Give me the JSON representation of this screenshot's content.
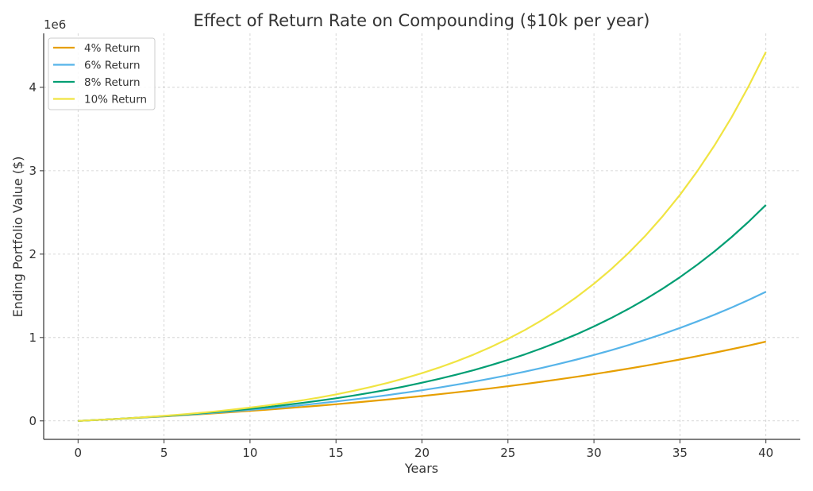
{
  "chart_data": {
    "type": "line",
    "title": "Effect of Return Rate on Compounding ($10k per year)",
    "xlabel": "Years",
    "ylabel": "Ending Portfolio Value ($)",
    "y_offset_label": "1e6",
    "xlim": [
      -2,
      42
    ],
    "ylim": [
      -221296,
      4647222
    ],
    "xticks": [
      0,
      5,
      10,
      15,
      20,
      25,
      30,
      35,
      40
    ],
    "xtick_labels": [
      "0",
      "5",
      "10",
      "15",
      "20",
      "25",
      "30",
      "35",
      "40"
    ],
    "yticks": [
      0,
      1000000,
      2000000,
      3000000,
      4000000
    ],
    "ytick_labels": [
      "0",
      "1",
      "2",
      "3",
      "4"
    ],
    "grid": true,
    "legend_position": "top-left",
    "x": [
      0,
      1,
      2,
      3,
      4,
      5,
      6,
      7,
      8,
      9,
      10,
      11,
      12,
      13,
      14,
      15,
      16,
      17,
      18,
      19,
      20,
      21,
      22,
      23,
      24,
      25,
      26,
      27,
      28,
      29,
      30,
      31,
      32,
      33,
      34,
      35,
      36,
      37,
      38,
      39,
      40
    ],
    "series": [
      {
        "name": "4% Return",
        "color": "#E69F00",
        "values": [
          0,
          10000,
          20400,
          31216,
          42465,
          54163,
          66330,
          78983,
          92142,
          105828,
          120061,
          134864,
          150258,
          166268,
          182919,
          200236,
          218245,
          236975,
          256454,
          276712,
          297781,
          319692,
          342480,
          366179,
          390826,
          416459,
          443118,
          470842,
          499676,
          529663,
          560849,
          593283,
          627015,
          662095,
          698579,
          736522,
          775983,
          817023,
          859703,
          904092,
          950255
        ]
      },
      {
        "name": "6% Return",
        "color": "#56B4E9",
        "values": [
          0,
          10000,
          20600,
          31836,
          43746,
          56371,
          69753,
          83938,
          98975,
          114913,
          131808,
          149716,
          168699,
          188821,
          210151,
          232760,
          256725,
          282129,
          309057,
          337600,
          367856,
          399927,
          433923,
          469958,
          508156,
          548645,
          591564,
          637058,
          685281,
          736398,
          790582,
          848017,
          908898,
          973432,
          1041838,
          1114348,
          1191209,
          1272681,
          1359042,
          1450585,
          1547620
        ]
      },
      {
        "name": "8% Return",
        "color": "#009E73",
        "values": [
          0,
          10000,
          20800,
          32464,
          45061,
          58666,
          73359,
          89228,
          106366,
          124876,
          144866,
          166455,
          189771,
          214953,
          242149,
          271521,
          303243,
          337502,
          374502,
          414463,
          457620,
          504229,
          554568,
          608933,
          667648,
          731059,
          799544,
          873508,
          953388,
          1039659,
          1132832,
          1233459,
          1342135,
          1459506,
          1586267,
          1723168,
          1871022,
          2030703,
          2203160,
          2389412,
          2590565
        ]
      },
      {
        "name": "10% Return",
        "color": "#F0E442",
        "values": [
          0,
          10000,
          21000,
          33100,
          46410,
          61051,
          77156,
          94872,
          114359,
          135795,
          159374,
          185312,
          213843,
          245227,
          279750,
          317725,
          359497,
          405447,
          455992,
          511591,
          572750,
          640025,
          714028,
          795430,
          884973,
          983471,
          1091818,
          1210999,
          1342099,
          1486309,
          1644940,
          1819434,
          2011378,
          2222515,
          2454767,
          2710244,
          2991268,
          3300395,
          3640434,
          4014478,
          4425926
        ]
      }
    ]
  }
}
